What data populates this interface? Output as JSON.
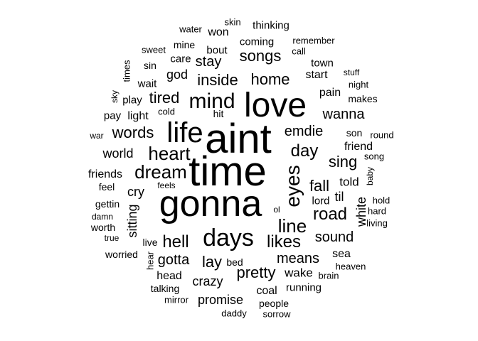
{
  "words": [
    "aint",
    "time",
    "gonna",
    "love",
    "life",
    "days",
    "mind",
    "heart",
    "dream",
    "eyes",
    "line",
    "likes",
    "hell",
    "road",
    "songs",
    "home",
    "inside",
    "day",
    "sing",
    "fall",
    "emdie",
    "words",
    "tired",
    "wanna",
    "pretty",
    "means",
    "sound",
    "lay",
    "gotta",
    "crazy",
    "promise",
    "stay",
    "god",
    "world",
    "cry",
    "sitting",
    "white",
    "til",
    "lord",
    "told",
    "friend",
    "friends",
    "light",
    "start",
    "pain",
    "town",
    "coming",
    "bout",
    "care",
    "mine",
    "won",
    "water",
    "skin",
    "thinking",
    "remember",
    "call",
    "sweet",
    "sin",
    "times",
    "wait",
    "play",
    "sky",
    "pay",
    "cold",
    "hit",
    "war",
    "son",
    "round",
    "song",
    "baby",
    "hold",
    "hard",
    "living",
    "feel",
    "feels",
    "gettin",
    "damn",
    "worth",
    "true",
    "live",
    "worried",
    "hear",
    "head",
    "talking",
    "mirror",
    "bed",
    "wake",
    "running",
    "coal",
    "people",
    "daddy",
    "sorrow",
    "brain",
    "heaven",
    "sea",
    "stuff",
    "night",
    "makes",
    "ol"
  ]
}
